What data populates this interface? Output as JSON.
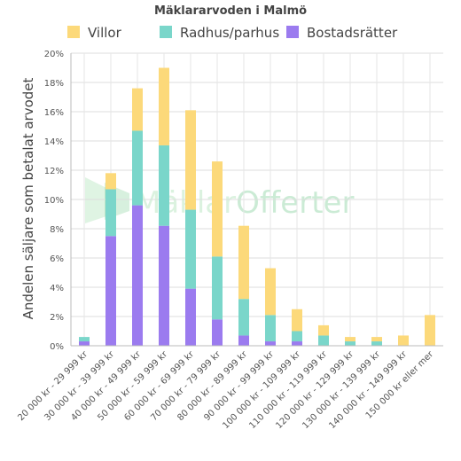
{
  "chart_data": {
    "type": "bar",
    "stacked": true,
    "title": "Mäklararvoden i Malmö",
    "ylabel": "Andelen säljare som betalat arvodet",
    "xlabel": "",
    "ylim": [
      0,
      20
    ],
    "yticks": [
      "0%",
      "2%",
      "4%",
      "6%",
      "8%",
      "10%",
      "12%",
      "14%",
      "16%",
      "18%",
      "20%"
    ],
    "grid": true,
    "legend_position": "top",
    "categories": [
      "20 000 kr - 29 999 kr",
      "30 000 kr - 39 999 kr",
      "40 000 kr - 49 999 kr",
      "50 000 kr - 59 999 kr",
      "60 000 kr - 69 999 kr",
      "70 000 kr - 79 999 kr",
      "80 000 kr - 89 999 kr",
      "90 000 kr - 99 999 kr",
      "100 000 kr - 109 999 kr",
      "110 000 kr - 119 999 kr",
      "120 000 kr - 129 999 kr",
      "130 000 kr - 139 999 kr",
      "140 000 kr - 149 999 kr",
      "150 000 kr eller mer"
    ],
    "series": [
      {
        "name": "Bostadsrätter",
        "color": "#9b7bef",
        "values": [
          0.3,
          7.5,
          9.6,
          8.2,
          3.9,
          1.8,
          0.7,
          0.3,
          0.3,
          0,
          0,
          0,
          0,
          0
        ]
      },
      {
        "name": "Radhus/parhus",
        "color": "#7ad6ca",
        "values": [
          0.3,
          3.2,
          5.1,
          5.5,
          5.4,
          4.3,
          2.5,
          1.8,
          0.7,
          0.7,
          0.3,
          0.3,
          0,
          0
        ]
      },
      {
        "name": "Villor",
        "color": "#fcd97a",
        "values": [
          0,
          1.1,
          2.9,
          5.3,
          6.8,
          6.5,
          5.0,
          3.2,
          1.5,
          0.7,
          0.3,
          0.3,
          0.7,
          2.1
        ]
      }
    ],
    "legend_order": [
      "Villor",
      "Radhus/parhus",
      "Bostadsrätter"
    ]
  },
  "watermark": {
    "part1": "Mäklar",
    "part2": "Offerter"
  }
}
